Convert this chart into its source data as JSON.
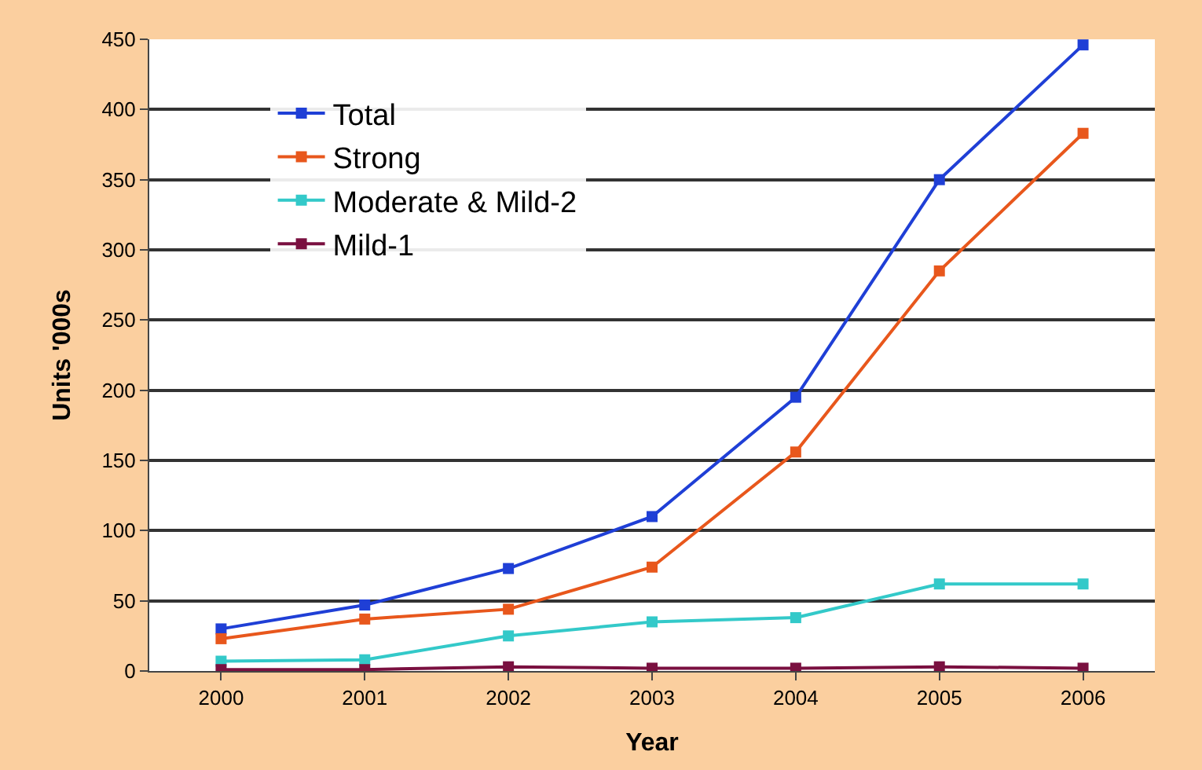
{
  "chart_data": {
    "type": "line",
    "xlabel": "Year",
    "ylabel": "Units '000s",
    "x": [
      2000,
      2001,
      2002,
      2003,
      2004,
      2005,
      2006
    ],
    "xlim": [
      1999.5,
      2006.5
    ],
    "xticks": [
      2000,
      2001,
      2002,
      2003,
      2004,
      2005,
      2006
    ],
    "ylim": [
      0,
      450
    ],
    "yticks": [
      0,
      50,
      100,
      150,
      200,
      250,
      300,
      350,
      400,
      450
    ],
    "grid": "y",
    "legend": "top left",
    "marker": "square",
    "line_style": "solid",
    "series": [
      {
        "name": "Total",
        "color": "#1f3fd6",
        "values": [
          30,
          47,
          73,
          110,
          195,
          350,
          446
        ]
      },
      {
        "name": "Strong",
        "color": "#e8571c",
        "values": [
          23,
          37,
          44,
          74,
          156,
          285,
          383
        ]
      },
      {
        "name": "Moderate & Mild-2",
        "color": "#33c9c9",
        "values": [
          7,
          8,
          25,
          35,
          38,
          62,
          62
        ]
      },
      {
        "name": "Mild-1",
        "color": "#7a1040",
        "values": [
          1,
          1,
          3,
          2,
          2,
          3,
          2
        ]
      }
    ]
  }
}
